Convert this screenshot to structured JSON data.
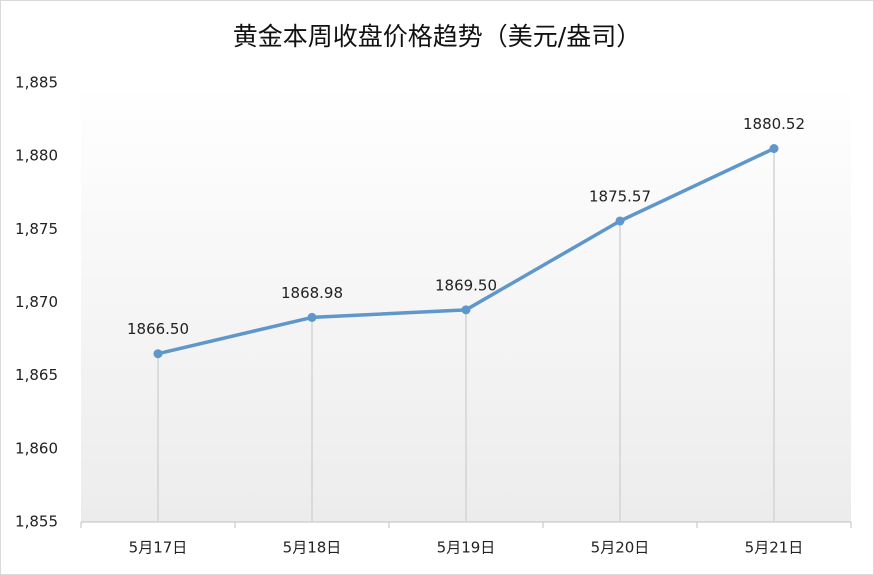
{
  "chart_data": {
    "type": "line",
    "title": "黄金本周收盘价格趋势（美元/盎司）",
    "categories": [
      "5月17日",
      "5月18日",
      "5月19日",
      "5月20日",
      "5月21日"
    ],
    "values": [
      1866.5,
      1868.98,
      1869.5,
      1875.57,
      1880.52
    ],
    "value_labels": [
      "1866.50",
      "1868.98",
      "1869.50",
      "1875.57",
      "1880.52"
    ],
    "color": "#5f97cb",
    "ylim": [
      1855,
      1885
    ],
    "yticks": [
      {
        "value": 1855,
        "label": "1,855"
      },
      {
        "value": 1860,
        "label": "1,860"
      },
      {
        "value": 1865,
        "label": "1,865"
      },
      {
        "value": 1870,
        "label": "1,870"
      },
      {
        "value": 1875,
        "label": "1,875"
      },
      {
        "value": 1880,
        "label": "1,880"
      },
      {
        "value": 1885,
        "label": "1,885"
      }
    ],
    "drop_lines": true
  }
}
